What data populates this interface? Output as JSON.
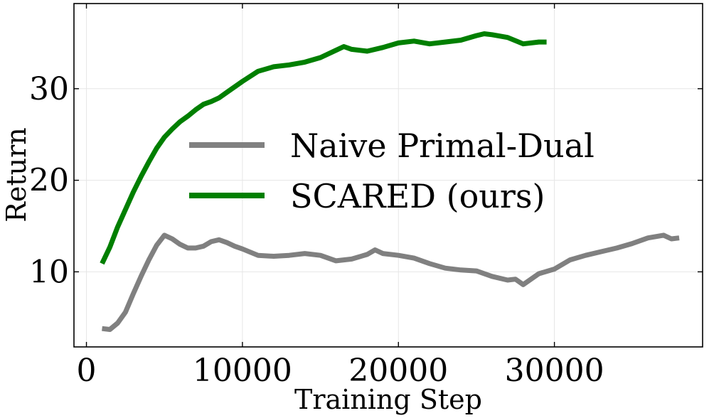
{
  "chart_data": {
    "type": "line",
    "xlabel": "Training Step",
    "ylabel": "Return",
    "xlim": [
      -800,
      39500
    ],
    "ylim": [
      1.8,
      39.3
    ],
    "xticks": [
      0,
      10000,
      20000,
      30000
    ],
    "yticks": [
      10,
      20,
      30
    ],
    "xtick_labels": [
      "0",
      "10000",
      "20000",
      "30000"
    ],
    "ytick_labels": [
      "10",
      "20",
      "30"
    ],
    "grid": true,
    "legend_position": "center",
    "series": [
      {
        "name": "Naive Primal-Dual",
        "color": "#808080",
        "x": [
          1000,
          1500,
          2000,
          2500,
          3000,
          3500,
          4000,
          4500,
          5000,
          5500,
          6000,
          6500,
          7000,
          7500,
          8000,
          8500,
          9000,
          9500,
          10000,
          11000,
          12000,
          13000,
          14000,
          15000,
          16000,
          17000,
          18000,
          18500,
          19000,
          20000,
          21000,
          22000,
          23000,
          24000,
          25000,
          26000,
          27000,
          27500,
          28000,
          29000,
          30000,
          31000,
          32000,
          33000,
          34000,
          35000,
          36000,
          37000,
          37500,
          38000
        ],
        "y": [
          3.8,
          3.7,
          4.4,
          5.6,
          7.6,
          9.5,
          11.3,
          12.9,
          14.0,
          13.6,
          13.0,
          12.6,
          12.6,
          12.8,
          13.3,
          13.5,
          13.2,
          12.8,
          12.5,
          11.8,
          11.7,
          11.8,
          12.0,
          11.8,
          11.2,
          11.4,
          11.9,
          12.4,
          12.0,
          11.8,
          11.5,
          10.9,
          10.4,
          10.2,
          10.1,
          9.5,
          9.1,
          9.2,
          8.6,
          9.8,
          10.3,
          11.3,
          11.8,
          12.2,
          12.6,
          13.1,
          13.7,
          14.0,
          13.6,
          13.7
        ]
      },
      {
        "name": "SCARED (ours)",
        "color": "#007f00",
        "x": [
          1000,
          1500,
          2000,
          2500,
          3000,
          3500,
          4000,
          4500,
          5000,
          5500,
          6000,
          6500,
          7000,
          7500,
          8000,
          8500,
          9000,
          10000,
          11000,
          12000,
          13000,
          14000,
          15000,
          16000,
          16500,
          17000,
          18000,
          19000,
          20000,
          21000,
          22000,
          23000,
          24000,
          25000,
          25500,
          26000,
          27000,
          28000,
          29000,
          29500
        ],
        "y": [
          10.9,
          12.7,
          14.9,
          16.8,
          18.7,
          20.4,
          22.0,
          23.5,
          24.7,
          25.6,
          26.4,
          27.0,
          27.7,
          28.3,
          28.6,
          29.0,
          29.6,
          30.8,
          31.9,
          32.4,
          32.6,
          32.9,
          33.4,
          34.2,
          34.6,
          34.3,
          34.1,
          34.5,
          35.0,
          35.2,
          34.9,
          35.1,
          35.3,
          35.8,
          36.0,
          35.9,
          35.6,
          34.9,
          35.1,
          35.1
        ]
      }
    ]
  }
}
